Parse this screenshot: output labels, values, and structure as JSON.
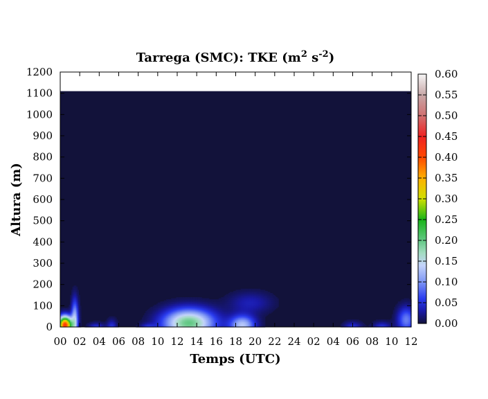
{
  "chart_data": {
    "type": "heatmap",
    "title_main": "Tarrega (SMC): TKE (m",
    "title_sup1": "2",
    "title_mid": " s",
    "title_sup2": "-2",
    "title_end": ")",
    "xlabel": "Temps (UTC)",
    "ylabel": "Altura (m)",
    "x_ticks": [
      "00",
      "02",
      "04",
      "06",
      "08",
      "10",
      "12",
      "14",
      "16",
      "18",
      "20",
      "22",
      "24",
      "02",
      "04",
      "06",
      "08",
      "10",
      "12"
    ],
    "x_range_hours": [
      0,
      36
    ],
    "y_ticks": [
      0,
      100,
      200,
      300,
      400,
      500,
      600,
      700,
      800,
      900,
      1000,
      1100,
      1200
    ],
    "ylim": [
      0,
      1200
    ],
    "data_top_m": 1110,
    "colorbar": {
      "range": [
        0,
        0.6
      ],
      "ticks": [
        "0.00",
        "0.05",
        "0.10",
        "0.15",
        "0.20",
        "0.25",
        "0.30",
        "0.35",
        "0.40",
        "0.45",
        "0.50",
        "0.55",
        "0.60"
      ],
      "stops": [
        {
          "v": 0.0,
          "color": "#12123a"
        },
        {
          "v": 0.03,
          "color": "#1a1aa8"
        },
        {
          "v": 0.06,
          "color": "#2a3cf0"
        },
        {
          "v": 0.1,
          "color": "#7e96f4"
        },
        {
          "v": 0.14,
          "color": "#c4d4fa"
        },
        {
          "v": 0.17,
          "color": "#a2dcc0"
        },
        {
          "v": 0.2,
          "color": "#62c884"
        },
        {
          "v": 0.25,
          "color": "#18b418"
        },
        {
          "v": 0.3,
          "color": "#d0e000"
        },
        {
          "v": 0.35,
          "color": "#ffb000"
        },
        {
          "v": 0.4,
          "color": "#ff4800"
        },
        {
          "v": 0.45,
          "color": "#ee2222"
        },
        {
          "v": 0.5,
          "color": "#d07070"
        },
        {
          "v": 0.55,
          "color": "#c8a8a8"
        },
        {
          "v": 0.6,
          "color": "#f6f6f6"
        }
      ]
    },
    "features": [
      {
        "t": 0.5,
        "z": 10,
        "rt": 0.7,
        "rz": 40,
        "peak": 0.42
      },
      {
        "t": 1.5,
        "z": 40,
        "rt": 0.35,
        "rz": 90,
        "peak": 0.12
      },
      {
        "t": 3.7,
        "z": 0,
        "rt": 0.8,
        "rz": 20,
        "peak": 0.05
      },
      {
        "t": 5.3,
        "z": 0,
        "rt": 0.5,
        "rz": 35,
        "peak": 0.05
      },
      {
        "t": 9.0,
        "z": 0,
        "rt": 0.8,
        "rz": 18,
        "peak": 0.04
      },
      {
        "t": 13.2,
        "z": 20,
        "rt": 2.6,
        "rz": 65,
        "peak": 0.2
      },
      {
        "t": 18.7,
        "z": 10,
        "rt": 1.3,
        "rz": 45,
        "peak": 0.13
      },
      {
        "t": 19.5,
        "z": 115,
        "rt": 2.2,
        "rz": 50,
        "peak": 0.035
      },
      {
        "t": 30.0,
        "z": 0,
        "rt": 0.9,
        "rz": 25,
        "peak": 0.05
      },
      {
        "t": 33.0,
        "z": 0,
        "rt": 0.9,
        "rz": 25,
        "peak": 0.05
      },
      {
        "t": 35.5,
        "z": 35,
        "rt": 0.9,
        "rz": 60,
        "peak": 0.09
      }
    ]
  }
}
